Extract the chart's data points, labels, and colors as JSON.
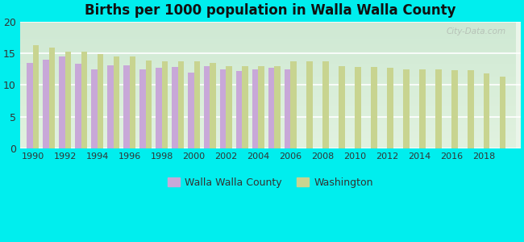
{
  "title": "Births per 1000 population in Walla Walla County",
  "background_color": "#00EEEE",
  "ylabel": "",
  "xlabel": "",
  "ylim": [
    0,
    20
  ],
  "yticks": [
    0,
    5,
    10,
    15,
    20
  ],
  "walla_walla_color": "#c8a8d8",
  "washington_color": "#c8d490",
  "years_ww": [
    1990,
    1991,
    1992,
    1993,
    1994,
    1995,
    1996,
    1997,
    1998,
    1999,
    2000,
    2001,
    2002,
    2003,
    2004,
    2005,
    2006
  ],
  "walla_walla_values": [
    13.5,
    14.0,
    14.5,
    13.3,
    12.5,
    13.1,
    13.1,
    12.5,
    12.7,
    12.8,
    12.0,
    13.0,
    12.5,
    12.2,
    12.5,
    12.7,
    12.5
  ],
  "years_wa": [
    1990,
    1991,
    1992,
    1993,
    1994,
    1995,
    1996,
    1997,
    1998,
    1999,
    2000,
    2001,
    2002,
    2003,
    2004,
    2005,
    2006,
    2007,
    2008,
    2009,
    2010,
    2011,
    2012,
    2013,
    2014,
    2015,
    2016,
    2017,
    2018,
    2019
  ],
  "washington_values": [
    16.3,
    15.9,
    15.3,
    15.2,
    14.9,
    14.5,
    14.5,
    13.8,
    13.7,
    13.7,
    13.7,
    13.5,
    13.0,
    13.0,
    13.0,
    13.0,
    13.7,
    13.7,
    13.7,
    13.0,
    12.8,
    12.8,
    12.7,
    12.5,
    12.5,
    12.5,
    12.3,
    12.3,
    11.8,
    11.3
  ],
  "bar_width": 0.38,
  "legend_walla_walla": "Walla Walla County",
  "legend_washington": "Washington",
  "xtick_years": [
    1990,
    1992,
    1994,
    1996,
    1998,
    2000,
    2002,
    2004,
    2006,
    2008,
    2010,
    2012,
    2014,
    2016,
    2018
  ],
  "plot_bg": "#f0f8f0",
  "watermark": "City-Data.com"
}
